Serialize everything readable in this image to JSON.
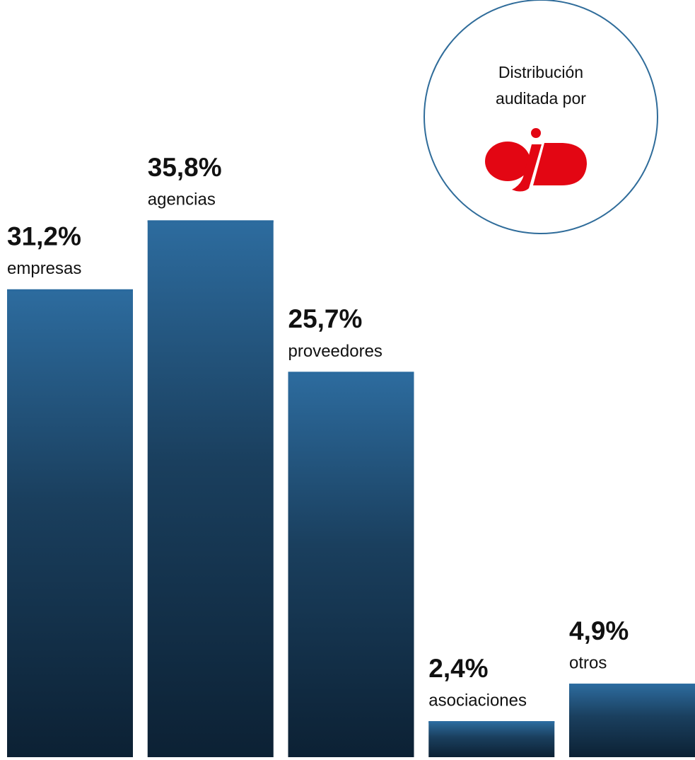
{
  "chart_data": {
    "type": "bar",
    "categories": [
      "empresas",
      "agencias",
      "proveedores",
      "asociaciones",
      "otros"
    ],
    "values": [
      31.2,
      35.8,
      25.7,
      2.4,
      4.9
    ],
    "value_labels": [
      "31,2%",
      "35,8%",
      "25,7%",
      "2,4%",
      "4,9%"
    ],
    "color": "#2a6a9e",
    "annotation": [
      "Distribución",
      "auditada por"
    ]
  }
}
